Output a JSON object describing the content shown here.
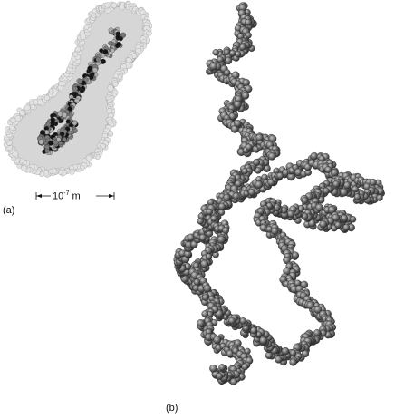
{
  "figure": {
    "panel_a": {
      "label": "(a)",
      "scale_bar": {
        "base": "10",
        "exponent": "-7",
        "unit": "m"
      }
    },
    "panel_b": {
      "label": "(b)"
    }
  },
  "colors": {
    "envelope_fill": "#d9d9d9",
    "envelope_bead": "#e4e4e4",
    "envelope_outline": "#9a9a9a",
    "chain_dark": "#1a1a1a",
    "chain_mid": "#7d7d7d",
    "chain_light": "#b5b5b5",
    "bead_edge": "#3a3a3a"
  }
}
